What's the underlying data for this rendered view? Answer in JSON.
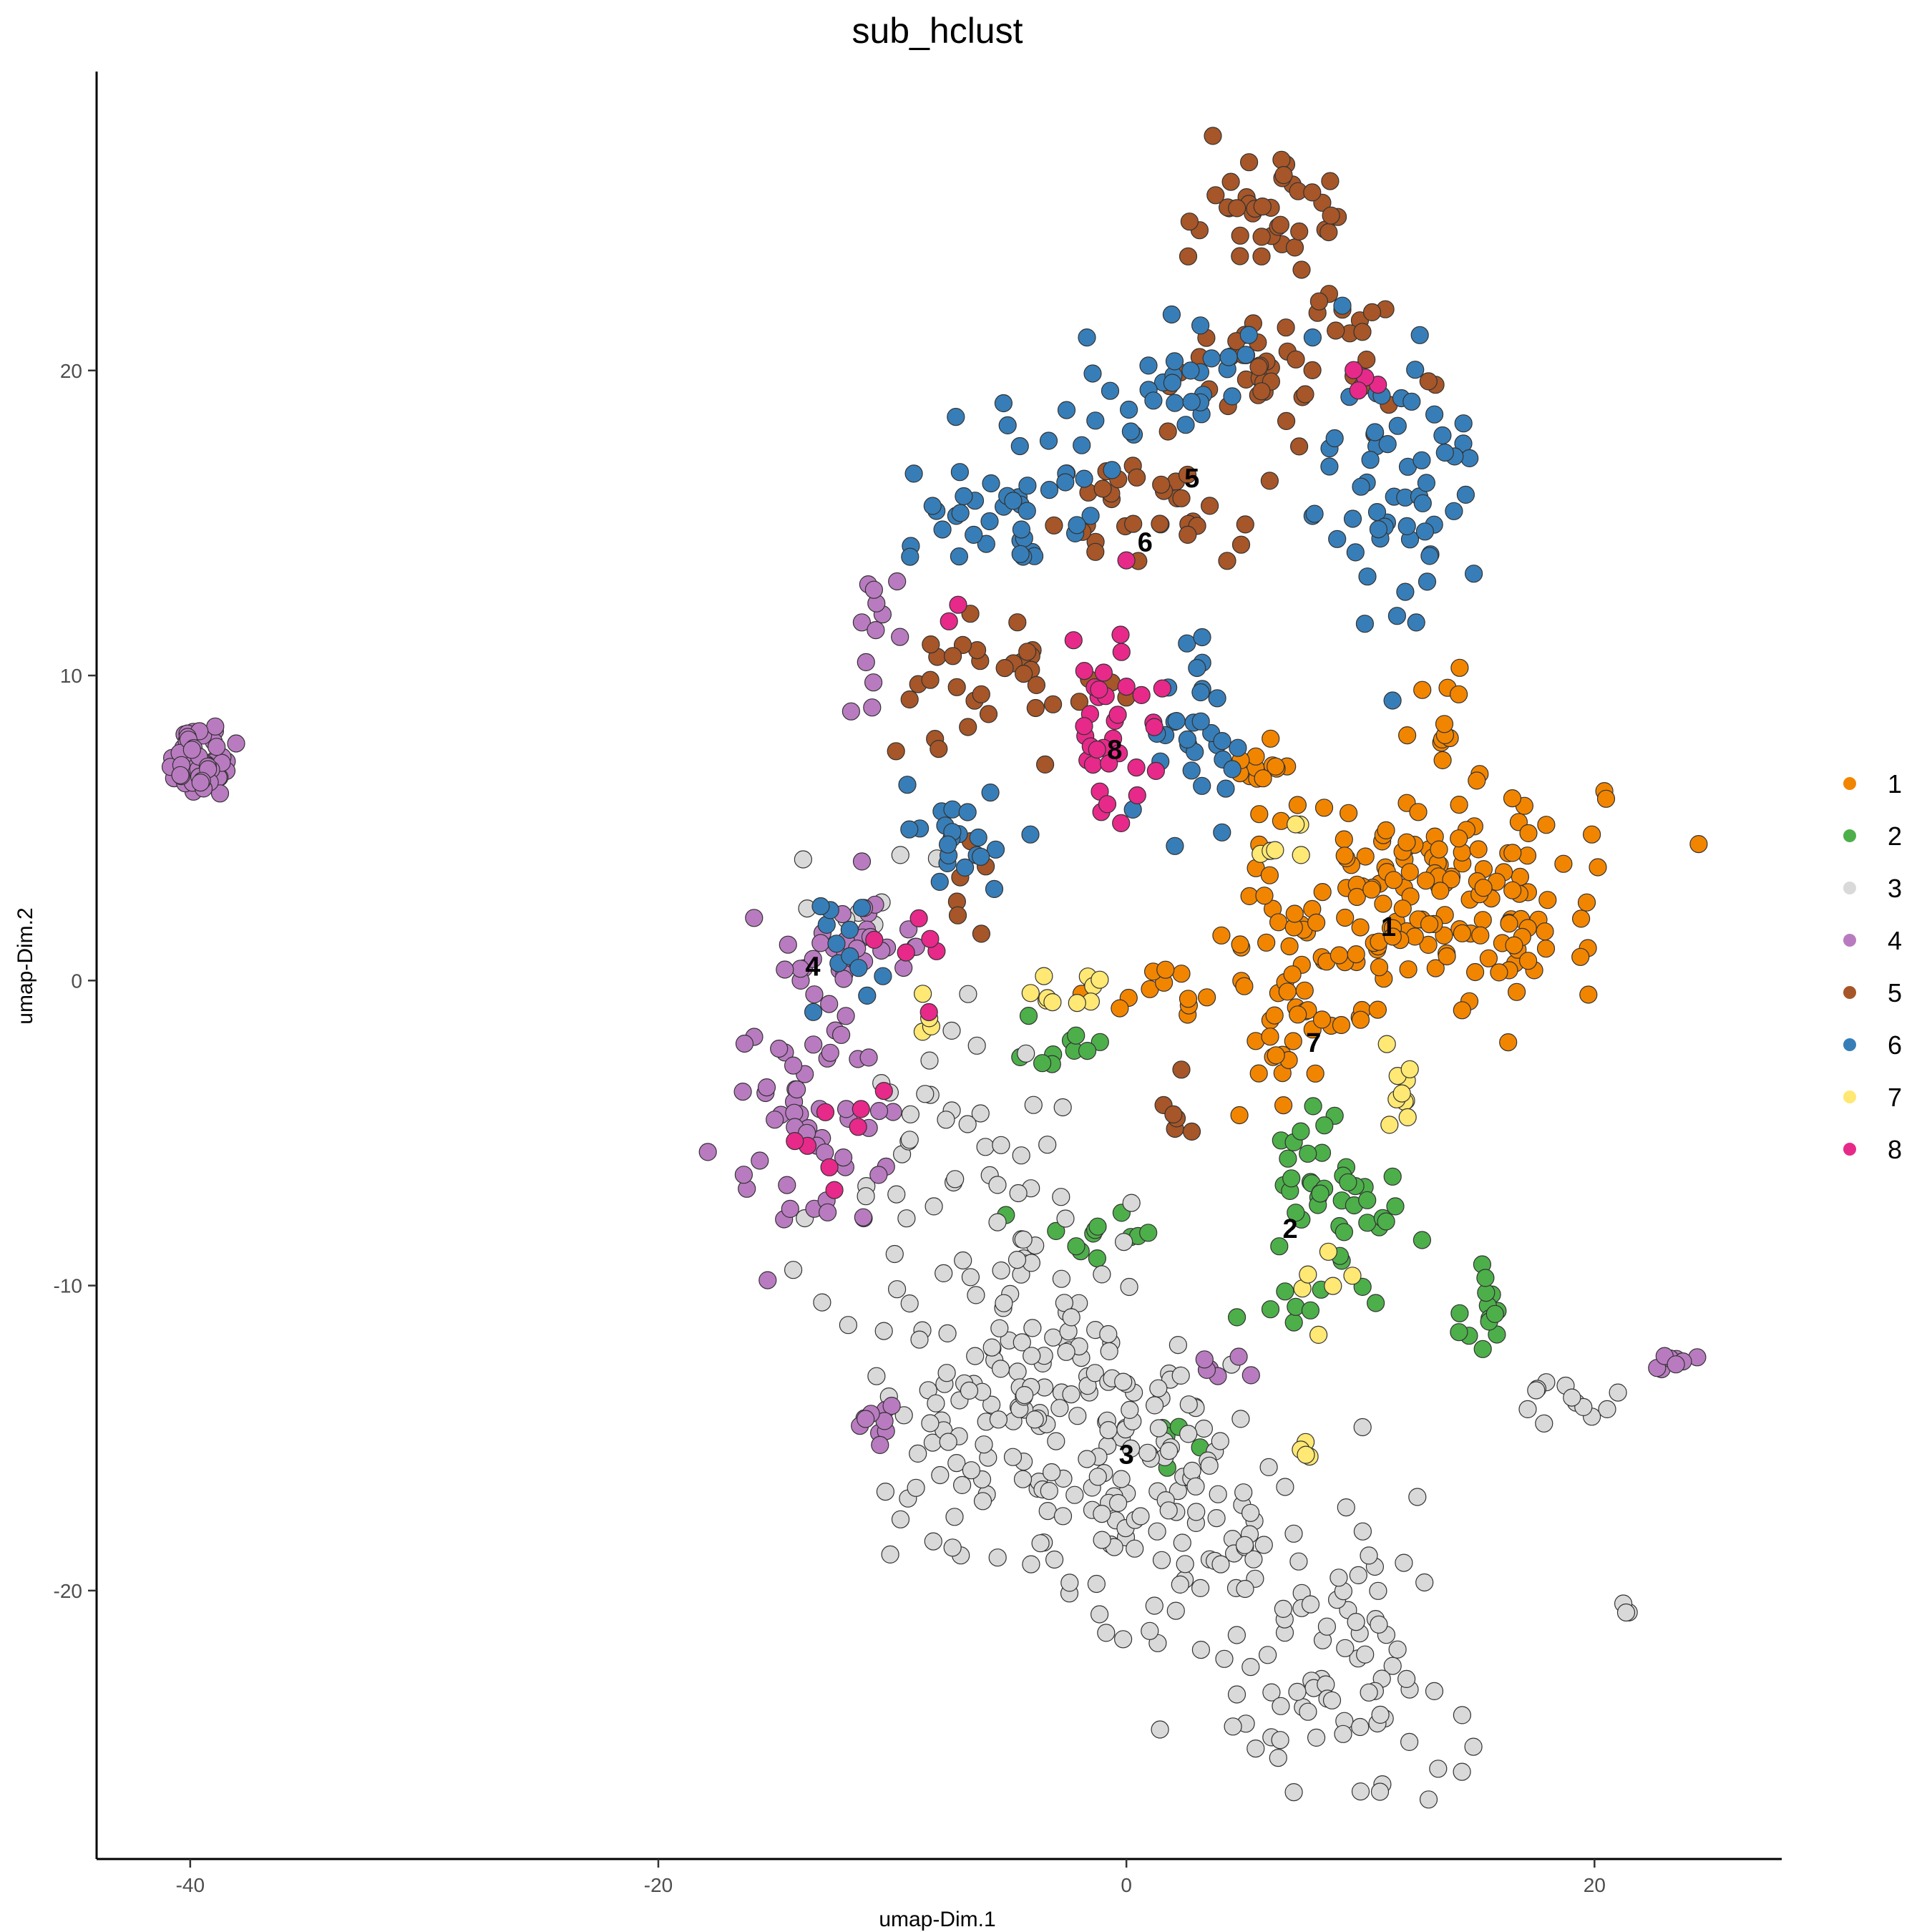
{
  "chart_data": {
    "type": "scatter",
    "title": "sub_hclust",
    "xlabel": "umap-Dim.1",
    "ylabel": "umap-Dim.2",
    "xlim": [
      -44,
      28
    ],
    "ylim": [
      -28.8,
      29.8
    ],
    "xticks": [
      -40,
      -20,
      0,
      20
    ],
    "yticks": [
      -20,
      -10,
      0,
      10,
      20
    ],
    "legend_position": "right",
    "grid": false,
    "marker_stroke": "#333333",
    "series": [
      {
        "name": "1",
        "color": "#F28500",
        "clusters": [
          {
            "cx": 13.5,
            "cy": 3.0,
            "sx": 3.4,
            "sy": 1.9,
            "n": 150
          },
          {
            "cx": 7.5,
            "cy": 0.5,
            "sx": 2.3,
            "sy": 1.9,
            "n": 45
          },
          {
            "cx": 6.5,
            "cy": 6.8,
            "sx": 1.1,
            "sy": 1.1,
            "n": 16
          },
          {
            "cx": 7.2,
            "cy": -2.5,
            "sx": 0.8,
            "sy": 1.0,
            "n": 12
          },
          {
            "cx": 1.8,
            "cy": -0.5,
            "sx": 1.5,
            "sy": 0.6,
            "n": 12
          },
          {
            "cx": 13.8,
            "cy": 8.0,
            "sx": 0.8,
            "sy": 1.3,
            "n": 10
          }
        ]
      },
      {
        "name": "2",
        "color": "#4DAF4A",
        "clusters": [
          {
            "cx": 8.3,
            "cy": -6.2,
            "sx": 1.2,
            "sy": 1.1,
            "n": 28
          },
          {
            "cx": 10.0,
            "cy": -7.8,
            "sx": 1.2,
            "sy": 0.7,
            "n": 14
          },
          {
            "cx": 7.6,
            "cy": -10.8,
            "sx": 1.2,
            "sy": 0.7,
            "n": 9
          },
          {
            "cx": 15.5,
            "cy": -10.6,
            "sx": 0.5,
            "sy": 1.1,
            "n": 14
          },
          {
            "cx": -1.5,
            "cy": -8.3,
            "sx": 1.5,
            "sy": 0.8,
            "n": 12
          },
          {
            "cx": -2.5,
            "cy": -2.0,
            "sx": 1.1,
            "sy": 0.9,
            "n": 10
          },
          {
            "cx": 2.5,
            "cy": -15.2,
            "sx": 1.3,
            "sy": 0.5,
            "n": 5
          }
        ]
      },
      {
        "name": "3",
        "color": "#D9D9D9",
        "clusters": [
          {
            "cx": -4.5,
            "cy": -13.0,
            "sx": 3.6,
            "sy": 3.3,
            "n": 170
          },
          {
            "cx": 2.0,
            "cy": -17.0,
            "sx": 2.8,
            "sy": 2.3,
            "n": 95
          },
          {
            "cx": 8.8,
            "cy": -22.5,
            "sx": 2.6,
            "sy": 2.2,
            "n": 80
          },
          {
            "cx": -6.5,
            "cy": -4.5,
            "sx": 2.2,
            "sy": 1.8,
            "n": 25
          },
          {
            "cx": 18.8,
            "cy": -13.8,
            "sx": 1.0,
            "sy": 0.4,
            "n": 12
          },
          {
            "cx": 21.5,
            "cy": -20.6,
            "sx": 0.2,
            "sy": 0.2,
            "n": 3
          },
          {
            "cx": -11.5,
            "cy": 3.5,
            "sx": 1.2,
            "sy": 1.8,
            "n": 8
          }
        ]
      },
      {
        "name": "4",
        "color": "#B97BC0",
        "clusters": [
          {
            "cx": -39.5,
            "cy": 7.2,
            "sx": 0.65,
            "sy": 0.55,
            "n": 70
          },
          {
            "cx": -13.5,
            "cy": -4.5,
            "sx": 1.9,
            "sy": 1.9,
            "n": 55
          },
          {
            "cx": -12.0,
            "cy": 0.8,
            "sx": 1.9,
            "sy": 1.1,
            "n": 35
          },
          {
            "cx": -10.8,
            "cy": 11.2,
            "sx": 0.9,
            "sy": 1.2,
            "n": 12
          },
          {
            "cx": -10.6,
            "cy": -14.0,
            "sx": 0.4,
            "sy": 0.9,
            "n": 10
          },
          {
            "cx": 24.0,
            "cy": -12.5,
            "sx": 0.6,
            "sy": 0.15,
            "n": 8
          },
          {
            "cx": 3.5,
            "cy": -12.9,
            "sx": 0.7,
            "sy": 0.3,
            "n": 6
          }
        ]
      },
      {
        "name": "5",
        "color": "#A65628",
        "clusters": [
          {
            "cx": 6.0,
            "cy": 25.0,
            "sx": 1.8,
            "sy": 1.1,
            "n": 40
          },
          {
            "cx": 6.5,
            "cy": 20.2,
            "sx": 2.3,
            "sy": 1.0,
            "n": 42
          },
          {
            "cx": 0.2,
            "cy": 15.4,
            "sx": 2.3,
            "sy": 1.1,
            "n": 35
          },
          {
            "cx": -4.8,
            "cy": 9.8,
            "sx": 2.3,
            "sy": 1.0,
            "n": 35
          },
          {
            "cx": 10.5,
            "cy": 21.2,
            "sx": 0.7,
            "sy": 0.9,
            "n": 8
          },
          {
            "cx": -6.8,
            "cy": 3.0,
            "sx": 0.6,
            "sy": 0.7,
            "n": 6
          },
          {
            "cx": 1.8,
            "cy": -4.2,
            "sx": 0.5,
            "sy": 0.6,
            "n": 6
          }
        ]
      },
      {
        "name": "6",
        "color": "#377EB8",
        "clusters": [
          {
            "cx": 11.5,
            "cy": 16.0,
            "sx": 1.6,
            "sy": 3.0,
            "n": 60
          },
          {
            "cx": 3.0,
            "cy": 8.5,
            "sx": 1.1,
            "sy": 1.7,
            "n": 30
          },
          {
            "cx": -4.8,
            "cy": 15.8,
            "sx": 2.2,
            "sy": 1.2,
            "n": 45
          },
          {
            "cx": 2.2,
            "cy": 19.5,
            "sx": 2.0,
            "sy": 1.0,
            "n": 30
          },
          {
            "cx": -7.5,
            "cy": 4.8,
            "sx": 1.3,
            "sy": 1.0,
            "n": 22
          },
          {
            "cx": -11.5,
            "cy": 1.2,
            "sx": 1.1,
            "sy": 1.1,
            "n": 12
          }
        ]
      },
      {
        "name": "7",
        "color": "#FFE873",
        "clusters": [
          {
            "cx": 11.8,
            "cy": -3.8,
            "sx": 0.4,
            "sy": 0.8,
            "n": 10
          },
          {
            "cx": -2.5,
            "cy": -0.5,
            "sx": 1.3,
            "sy": 0.4,
            "n": 10
          },
          {
            "cx": 6.7,
            "cy": 4.8,
            "sx": 0.5,
            "sy": 0.4,
            "n": 6
          },
          {
            "cx": 8.5,
            "cy": -9.8,
            "sx": 0.6,
            "sy": 0.6,
            "n": 6
          },
          {
            "cx": 7.8,
            "cy": -15.5,
            "sx": 0.3,
            "sy": 0.5,
            "n": 4
          },
          {
            "cx": -8.5,
            "cy": -2.0,
            "sx": 0.6,
            "sy": 0.5,
            "n": 4
          }
        ]
      },
      {
        "name": "8",
        "color": "#E7298A",
        "clusters": [
          {
            "cx": -0.8,
            "cy": 7.8,
            "sx": 1.2,
            "sy": 1.8,
            "n": 35
          },
          {
            "cx": -12.5,
            "cy": -4.5,
            "sx": 1.2,
            "sy": 1.5,
            "n": 8
          },
          {
            "cx": -9.0,
            "cy": 0.8,
            "sx": 1.0,
            "sy": 0.6,
            "n": 6
          },
          {
            "cx": 10.5,
            "cy": 19.5,
            "sx": 0.4,
            "sy": 0.5,
            "n": 4
          },
          {
            "cx": -7.0,
            "cy": 12.2,
            "sx": 0.3,
            "sy": 0.3,
            "n": 2
          }
        ]
      }
    ],
    "cluster_labels": [
      {
        "text": "1",
        "x": 11.2,
        "y": 1.7
      },
      {
        "text": "2",
        "x": 7.0,
        "y": -8.2
      },
      {
        "text": "3",
        "x": 0.0,
        "y": -15.6
      },
      {
        "text": "4",
        "x": -13.4,
        "y": 0.4
      },
      {
        "text": "5",
        "x": 2.8,
        "y": 16.4
      },
      {
        "text": "6",
        "x": 0.8,
        "y": 14.3
      },
      {
        "text": "7",
        "x": 8.0,
        "y": -2.1
      },
      {
        "text": "8",
        "x": -0.5,
        "y": 7.5
      }
    ]
  }
}
